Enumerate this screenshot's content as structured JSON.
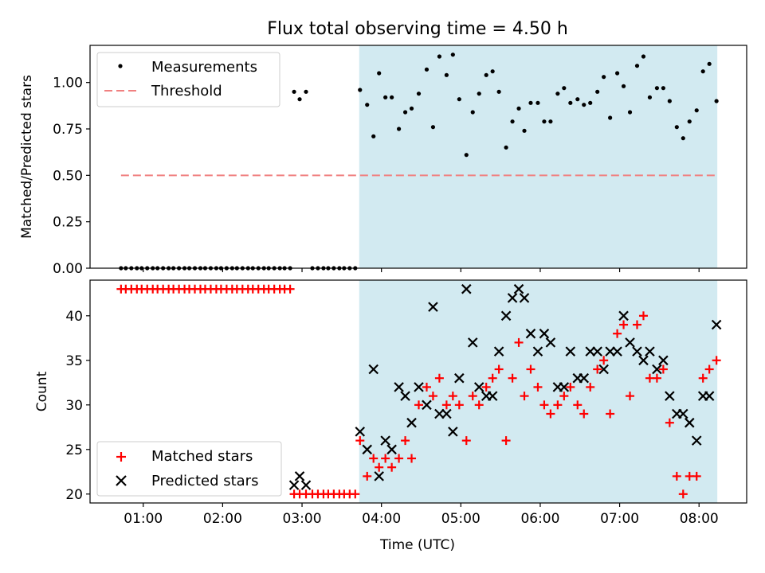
{
  "chart_data": {
    "title": "Flux total observing time = 4.50 h",
    "xlabel": "Time (UTC)",
    "x_unit": "hours UTC",
    "xlim": [
      0.33,
      8.6
    ],
    "x_ticks": [
      {
        "v": 1,
        "label": "01:00"
      },
      {
        "v": 2,
        "label": "02:00"
      },
      {
        "v": 3,
        "label": "03:00"
      },
      {
        "v": 4,
        "label": "04:00"
      },
      {
        "v": 5,
        "label": "05:00"
      },
      {
        "v": 6,
        "label": "06:00"
      },
      {
        "v": 7,
        "label": "07:00"
      },
      {
        "v": 8,
        "label": "08:00"
      }
    ],
    "shaded_region": {
      "x0": 3.72,
      "x1": 8.23,
      "color": "#add8e6"
    },
    "top": {
      "type": "scatter",
      "ylabel": "Matched/Predicted stars",
      "ylim": [
        0,
        1.2
      ],
      "y_ticks": [
        {
          "v": 0,
          "label": "0.00"
        },
        {
          "v": 0.25,
          "label": "0.25"
        },
        {
          "v": 0.5,
          "label": "0.50"
        },
        {
          "v": 0.75,
          "label": "0.75"
        },
        {
          "v": 1.0,
          "label": "1.00"
        }
      ],
      "legend": [
        "Measurements",
        "Threshold"
      ],
      "threshold": {
        "value": 0.5,
        "x0": 0.72,
        "x1": 8.23,
        "color": "#f08080"
      },
      "measurements": [
        [
          0.72,
          0
        ],
        [
          0.78,
          0
        ],
        [
          0.85,
          0
        ],
        [
          0.92,
          0
        ],
        [
          0.98,
          0
        ],
        [
          1.05,
          0
        ],
        [
          1.12,
          0
        ],
        [
          1.18,
          0
        ],
        [
          1.25,
          0
        ],
        [
          1.32,
          0
        ],
        [
          1.38,
          0
        ],
        [
          1.45,
          0
        ],
        [
          1.52,
          0
        ],
        [
          1.58,
          0
        ],
        [
          1.65,
          0
        ],
        [
          1.72,
          0
        ],
        [
          1.78,
          0
        ],
        [
          1.85,
          0
        ],
        [
          1.92,
          0
        ],
        [
          1.98,
          0
        ],
        [
          2.05,
          0
        ],
        [
          2.12,
          0
        ],
        [
          2.18,
          0
        ],
        [
          2.25,
          0
        ],
        [
          2.32,
          0
        ],
        [
          2.38,
          0
        ],
        [
          2.45,
          0
        ],
        [
          2.52,
          0
        ],
        [
          2.58,
          0
        ],
        [
          2.65,
          0
        ],
        [
          2.72,
          0
        ],
        [
          2.78,
          0
        ],
        [
          2.85,
          0
        ],
        [
          2.9,
          0.95
        ],
        [
          2.97,
          0.91
        ],
        [
          3.05,
          0.95
        ],
        [
          3.13,
          0
        ],
        [
          3.2,
          0
        ],
        [
          3.27,
          0
        ],
        [
          3.33,
          0
        ],
        [
          3.4,
          0
        ],
        [
          3.47,
          0
        ],
        [
          3.53,
          0
        ],
        [
          3.6,
          0
        ],
        [
          3.67,
          0
        ],
        [
          3.73,
          0.96
        ],
        [
          3.82,
          0.88
        ],
        [
          3.9,
          0.71
        ],
        [
          3.97,
          1.05
        ],
        [
          4.05,
          0.92
        ],
        [
          4.13,
          0.92
        ],
        [
          4.22,
          0.75
        ],
        [
          4.3,
          0.84
        ],
        [
          4.38,
          0.86
        ],
        [
          4.47,
          0.94
        ],
        [
          4.57,
          1.07
        ],
        [
          4.65,
          0.76
        ],
        [
          4.73,
          1.14
        ],
        [
          4.82,
          1.04
        ],
        [
          4.9,
          1.15
        ],
        [
          4.98,
          0.91
        ],
        [
          5.07,
          0.61
        ],
        [
          5.15,
          0.84
        ],
        [
          5.23,
          0.94
        ],
        [
          5.32,
          1.04
        ],
        [
          5.4,
          1.06
        ],
        [
          5.48,
          0.95
        ],
        [
          5.57,
          0.65
        ],
        [
          5.65,
          0.79
        ],
        [
          5.73,
          0.86
        ],
        [
          5.8,
          0.74
        ],
        [
          5.88,
          0.89
        ],
        [
          5.97,
          0.89
        ],
        [
          6.05,
          0.79
        ],
        [
          6.13,
          0.79
        ],
        [
          6.22,
          0.94
        ],
        [
          6.3,
          0.97
        ],
        [
          6.38,
          0.89
        ],
        [
          6.47,
          0.91
        ],
        [
          6.55,
          0.88
        ],
        [
          6.63,
          0.89
        ],
        [
          6.72,
          0.95
        ],
        [
          6.8,
          1.03
        ],
        [
          6.88,
          0.81
        ],
        [
          6.97,
          1.05
        ],
        [
          7.05,
          0.98
        ],
        [
          7.13,
          0.84
        ],
        [
          7.22,
          1.09
        ],
        [
          7.3,
          1.14
        ],
        [
          7.38,
          0.92
        ],
        [
          7.47,
          0.97
        ],
        [
          7.55,
          0.97
        ],
        [
          7.63,
          0.9
        ],
        [
          7.72,
          0.76
        ],
        [
          7.8,
          0.7
        ],
        [
          7.88,
          0.79
        ],
        [
          7.97,
          0.85
        ],
        [
          8.05,
          1.06
        ],
        [
          8.13,
          1.1
        ],
        [
          8.22,
          0.9
        ]
      ]
    },
    "bottom": {
      "type": "scatter",
      "ylabel": "Count",
      "ylim": [
        19,
        44
      ],
      "y_ticks": [
        {
          "v": 20,
          "label": "20"
        },
        {
          "v": 25,
          "label": "25"
        },
        {
          "v": 30,
          "label": "30"
        },
        {
          "v": 35,
          "label": "35"
        },
        {
          "v": 40,
          "label": "40"
        }
      ],
      "legend": [
        "Matched stars",
        "Predicted stars"
      ],
      "matched": [
        [
          0.72,
          43
        ],
        [
          0.78,
          43
        ],
        [
          0.85,
          43
        ],
        [
          0.92,
          43
        ],
        [
          0.98,
          43
        ],
        [
          1.05,
          43
        ],
        [
          1.12,
          43
        ],
        [
          1.18,
          43
        ],
        [
          1.25,
          43
        ],
        [
          1.32,
          43
        ],
        [
          1.38,
          43
        ],
        [
          1.45,
          43
        ],
        [
          1.52,
          43
        ],
        [
          1.58,
          43
        ],
        [
          1.65,
          43
        ],
        [
          1.72,
          43
        ],
        [
          1.78,
          43
        ],
        [
          1.85,
          43
        ],
        [
          1.92,
          43
        ],
        [
          1.98,
          43
        ],
        [
          2.05,
          43
        ],
        [
          2.12,
          43
        ],
        [
          2.18,
          43
        ],
        [
          2.25,
          43
        ],
        [
          2.32,
          43
        ],
        [
          2.38,
          43
        ],
        [
          2.45,
          43
        ],
        [
          2.52,
          43
        ],
        [
          2.58,
          43
        ],
        [
          2.65,
          43
        ],
        [
          2.72,
          43
        ],
        [
          2.78,
          43
        ],
        [
          2.85,
          43
        ],
        [
          2.9,
          20
        ],
        [
          2.97,
          20
        ],
        [
          3.05,
          20
        ],
        [
          3.13,
          20
        ],
        [
          3.2,
          20
        ],
        [
          3.27,
          20
        ],
        [
          3.33,
          20
        ],
        [
          3.4,
          20
        ],
        [
          3.47,
          20
        ],
        [
          3.53,
          20
        ],
        [
          3.6,
          20
        ],
        [
          3.67,
          20
        ],
        [
          3.73,
          26
        ],
        [
          3.82,
          22
        ],
        [
          3.9,
          24
        ],
        [
          3.97,
          23
        ],
        [
          4.05,
          24
        ],
        [
          4.13,
          23
        ],
        [
          4.22,
          24
        ],
        [
          4.3,
          26
        ],
        [
          4.38,
          24
        ],
        [
          4.47,
          30
        ],
        [
          4.57,
          32
        ],
        [
          4.65,
          31
        ],
        [
          4.73,
          33
        ],
        [
          4.82,
          30
        ],
        [
          4.9,
          31
        ],
        [
          4.98,
          30
        ],
        [
          5.07,
          26
        ],
        [
          5.15,
          31
        ],
        [
          5.23,
          30
        ],
        [
          5.32,
          32
        ],
        [
          5.4,
          33
        ],
        [
          5.48,
          34
        ],
        [
          5.57,
          26
        ],
        [
          5.65,
          33
        ],
        [
          5.73,
          37
        ],
        [
          5.8,
          31
        ],
        [
          5.88,
          34
        ],
        [
          5.97,
          32
        ],
        [
          6.05,
          30
        ],
        [
          6.13,
          29
        ],
        [
          6.22,
          30
        ],
        [
          6.3,
          31
        ],
        [
          6.38,
          32
        ],
        [
          6.47,
          30
        ],
        [
          6.55,
          29
        ],
        [
          6.63,
          32
        ],
        [
          6.72,
          34
        ],
        [
          6.8,
          35
        ],
        [
          6.88,
          29
        ],
        [
          6.97,
          38
        ],
        [
          7.05,
          39
        ],
        [
          7.13,
          31
        ],
        [
          7.22,
          39
        ],
        [
          7.3,
          40
        ],
        [
          7.38,
          33
        ],
        [
          7.47,
          33
        ],
        [
          7.55,
          34
        ],
        [
          7.63,
          28
        ],
        [
          7.72,
          22
        ],
        [
          7.8,
          20
        ],
        [
          7.88,
          22
        ],
        [
          7.97,
          22
        ],
        [
          8.05,
          33
        ],
        [
          8.13,
          34
        ],
        [
          8.22,
          35
        ]
      ],
      "predicted": [
        [
          2.9,
          21
        ],
        [
          2.97,
          22
        ],
        [
          3.05,
          21
        ],
        [
          3.73,
          27
        ],
        [
          3.82,
          25
        ],
        [
          3.9,
          34
        ],
        [
          3.97,
          22
        ],
        [
          4.05,
          26
        ],
        [
          4.13,
          25
        ],
        [
          4.22,
          32
        ],
        [
          4.3,
          31
        ],
        [
          4.38,
          28
        ],
        [
          4.47,
          32
        ],
        [
          4.57,
          30
        ],
        [
          4.65,
          41
        ],
        [
          4.73,
          29
        ],
        [
          4.82,
          29
        ],
        [
          4.9,
          27
        ],
        [
          4.98,
          33
        ],
        [
          5.07,
          43
        ],
        [
          5.15,
          37
        ],
        [
          5.23,
          32
        ],
        [
          5.32,
          31
        ],
        [
          5.4,
          31
        ],
        [
          5.48,
          36
        ],
        [
          5.57,
          40
        ],
        [
          5.65,
          42
        ],
        [
          5.73,
          43
        ],
        [
          5.8,
          42
        ],
        [
          5.88,
          38
        ],
        [
          5.97,
          36
        ],
        [
          6.05,
          38
        ],
        [
          6.13,
          37
        ],
        [
          6.22,
          32
        ],
        [
          6.3,
          32
        ],
        [
          6.38,
          36
        ],
        [
          6.47,
          33
        ],
        [
          6.55,
          33
        ],
        [
          6.63,
          36
        ],
        [
          6.72,
          36
        ],
        [
          6.8,
          34
        ],
        [
          6.88,
          36
        ],
        [
          6.97,
          36
        ],
        [
          7.05,
          40
        ],
        [
          7.13,
          37
        ],
        [
          7.22,
          36
        ],
        [
          7.3,
          35
        ],
        [
          7.38,
          36
        ],
        [
          7.47,
          34
        ],
        [
          7.55,
          35
        ],
        [
          7.63,
          31
        ],
        [
          7.72,
          29
        ],
        [
          7.8,
          29
        ],
        [
          7.88,
          28
        ],
        [
          7.97,
          26
        ],
        [
          8.05,
          31
        ],
        [
          8.13,
          31
        ],
        [
          8.22,
          39
        ]
      ]
    }
  }
}
